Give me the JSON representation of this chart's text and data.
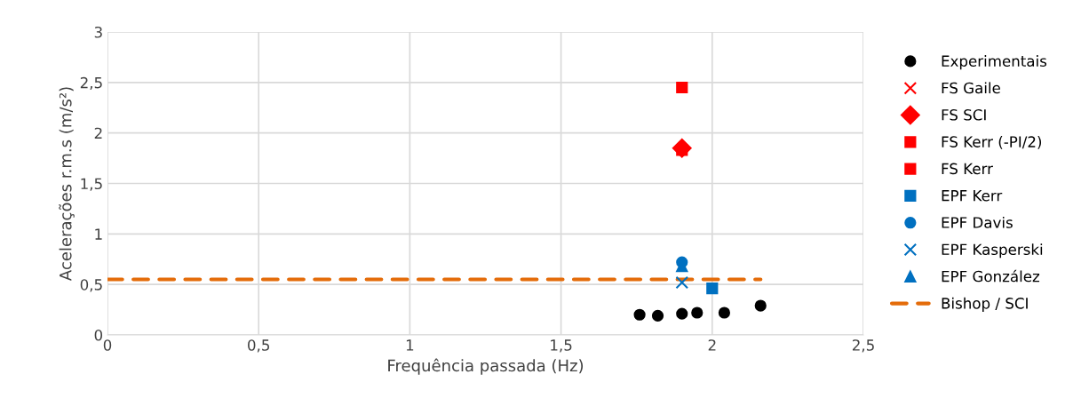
{
  "chart_data": {
    "type": "scatter",
    "xlabel": "Frequência passada (Hz)",
    "ylabel": "Acelerações r.m.s (m/s²)",
    "xlim": [
      0,
      2.5
    ],
    "xticks": [
      {
        "value": 0,
        "label": "0"
      },
      {
        "value": 0.5,
        "label": "0,5"
      },
      {
        "value": 1,
        "label": "1"
      },
      {
        "value": 1.5,
        "label": "1,5"
      },
      {
        "value": 2,
        "label": "2"
      },
      {
        "value": 2.5,
        "label": "2,5"
      }
    ],
    "ylim": [
      0,
      3
    ],
    "yticks": [
      {
        "value": 0,
        "label": "0"
      },
      {
        "value": 0.5,
        "label": "0,5"
      },
      {
        "value": 1,
        "label": "1"
      },
      {
        "value": 1.5,
        "label": "1,5"
      },
      {
        "value": 2,
        "label": "2"
      },
      {
        "value": 2.5,
        "label": "2,5"
      },
      {
        "value": 3,
        "label": "3"
      }
    ],
    "grid": true,
    "legend": "right",
    "series": [
      {
        "name": "Experimentais",
        "color": "#000000",
        "marker": "circle",
        "x": [
          1.76,
          1.82,
          1.9,
          1.95,
          2.04,
          2.16
        ],
        "values": [
          0.2,
          0.19,
          0.21,
          0.22,
          0.22,
          0.29
        ]
      },
      {
        "name": "FS Gaile",
        "color": "#ff0000",
        "marker": "cross"
      },
      {
        "name": "FS SCI",
        "color": "#ff0000",
        "marker": "diamond",
        "x": [
          1.9
        ],
        "values": [
          1.85
        ]
      },
      {
        "name": "FS Kerr (-PI/2)",
        "color": "#ff0000",
        "marker": "square",
        "x": [
          1.9
        ],
        "values": [
          1.83
        ]
      },
      {
        "name": "FS Kerr",
        "color": "#ff0000",
        "marker": "square",
        "x": [
          1.9
        ],
        "values": [
          2.45
        ]
      },
      {
        "name": "EPF Kerr",
        "color": "#0070c0",
        "marker": "square",
        "x": [
          2.0
        ],
        "values": [
          0.46
        ]
      },
      {
        "name": "EPF Davis",
        "color": "#0070c0",
        "marker": "circle",
        "x": [
          1.9
        ],
        "values": [
          0.72
        ]
      },
      {
        "name": "EPF Kasperski",
        "color": "#0070c0",
        "marker": "cross",
        "x": [
          1.9
        ],
        "values": [
          0.52
        ]
      },
      {
        "name": "EPF González",
        "color": "#0070c0",
        "marker": "triangle",
        "x": [
          1.9
        ],
        "values": [
          0.68
        ]
      },
      {
        "name": "Bishop / SCI",
        "type": "line",
        "line_style": "dashed",
        "color": "#e46c0a",
        "x": [
          0,
          2.16
        ],
        "values": [
          0.55,
          0.55
        ]
      }
    ]
  }
}
